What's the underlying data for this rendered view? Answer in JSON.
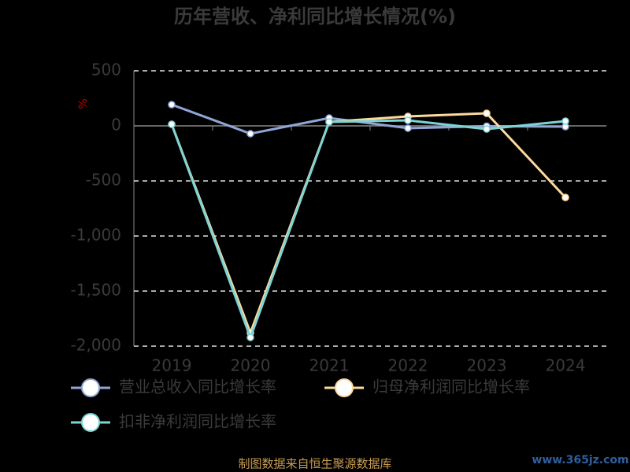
{
  "chart_data": {
    "type": "line",
    "title": "历年营收、净利同比增长情况(%)",
    "y_label": "%",
    "categories": [
      "2019",
      "2020",
      "2021",
      "2022",
      "2023",
      "2024"
    ],
    "series": [
      {
        "name": "营业总收入同比增长率",
        "color": "#8fa6d6",
        "values": [
          193,
          -71,
          71,
          -21,
          -3,
          -7
        ]
      },
      {
        "name": "归母净利润同比增长率",
        "color": "#fdd9a0",
        "values": [
          14,
          -1879,
          36,
          86,
          114,
          -650
        ]
      },
      {
        "name": "扣非净利润同比增长率",
        "color": "#7ed3d3",
        "values": [
          14,
          -1921,
          36,
          50,
          -29,
          43
        ]
      }
    ],
    "ylim": [
      -2000,
      500
    ],
    "yticks": [
      500,
      0,
      -500,
      {
        "value": -1000,
        "label": "-1,000"
      },
      {
        "value": -1500,
        "label": "-1,500"
      },
      {
        "value": -2000,
        "label": "-2,000"
      }
    ],
    "grid": true,
    "footer": "制图数据来自恒生聚源数据库",
    "watermark": "www.365jz.com"
  }
}
